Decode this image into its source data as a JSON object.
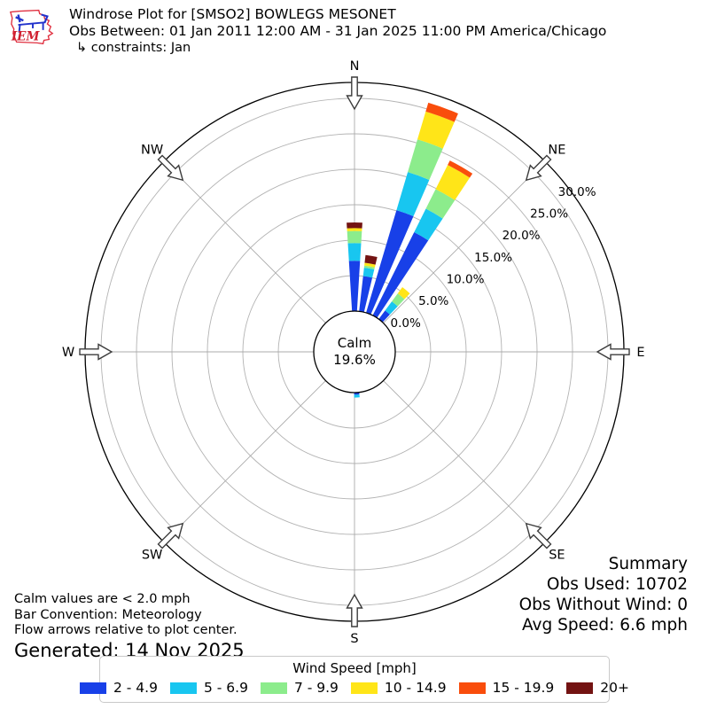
{
  "header": {
    "title": "Windrose Plot for [SMSO2] BOWLEGS MESONET",
    "obs_between": "Obs Between: 01 Jan 2011 12:00 AM - 31 Jan 2025 11:00 PM America/Chicago",
    "constraints": "↳ constraints: Jan"
  },
  "logo": {
    "text": "IEM"
  },
  "chart_data": {
    "type": "windrose",
    "title": "Windrose Plot for [SMSO2] BOWLEGS MESONET",
    "units": "mph",
    "calm": {
      "label": "Calm",
      "value": "19.6%"
    },
    "ring_ticks_pct": [
      0,
      5,
      10,
      15,
      20,
      25,
      30
    ],
    "ring_tick_labels": [
      "0.0%",
      "5.0%",
      "10.0%",
      "15.0%",
      "20.0%",
      "25.0%",
      "30.0%"
    ],
    "ring_label_angle_deg": 52,
    "rmax_pct": 32.2,
    "grid": true,
    "compass_points": [
      "N",
      "NE",
      "E",
      "SE",
      "S",
      "SW",
      "W",
      "NW"
    ],
    "speed_bins": [
      {
        "label": "2 - 4.9",
        "color": "#1840e8"
      },
      {
        "label": "5 - 6.9",
        "color": "#18c6f0"
      },
      {
        "label": "7 - 9.9",
        "color": "#8cec8c"
      },
      {
        "label": "10 - 14.9",
        "color": "#ffe518"
      },
      {
        "label": "15 - 19.9",
        "color": "#f94d0c"
      },
      {
        "label": "20+",
        "color": "#731312"
      }
    ],
    "bar_width_deg": 7,
    "bars": [
      {
        "dir_deg": 0,
        "cum_pct": [
          [
            0,
            7.1
          ],
          [
            1,
            9.6
          ],
          [
            2,
            11.3
          ],
          [
            3,
            11.7
          ],
          [
            5,
            12.5
          ]
        ]
      },
      {
        "dir_deg": 10,
        "cum_pct": [
          [
            0,
            5.0
          ],
          [
            1,
            6.2
          ],
          [
            2,
            6.5
          ],
          [
            3,
            6.9
          ],
          [
            5,
            8.0
          ]
        ]
      },
      {
        "dir_deg": 20,
        "cum_pct": [
          [
            0,
            15.1
          ],
          [
            1,
            20.7
          ],
          [
            2,
            25.5
          ],
          [
            3,
            29.6
          ],
          [
            4,
            30.9
          ]
        ]
      },
      {
        "dir_deg": 30,
        "cum_pct": [
          [
            0,
            13.1
          ],
          [
            1,
            16.8
          ],
          [
            2,
            19.9
          ],
          [
            3,
            23.7
          ],
          [
            4,
            24.4
          ]
        ]
      },
      {
        "dir_deg": 40,
        "cum_pct": [
          [
            0,
            1.5
          ],
          [
            1,
            3.1
          ],
          [
            2,
            4.5
          ],
          [
            3,
            5.6
          ]
        ]
      },
      {
        "dir_deg": 177,
        "cum_pct": [
          [
            0,
            0.3
          ],
          [
            1,
            0.7
          ]
        ]
      }
    ]
  },
  "summary": {
    "heading": "Summary",
    "obs_used": "Obs Used: 10702",
    "obs_without_wind": "Obs Without Wind: 0",
    "avg_speed": "Avg Speed: 6.6 mph"
  },
  "footnotes": {
    "line1": "Calm values are < 2.0 mph",
    "line2": "Bar Convention: Meteorology",
    "line3": "Flow arrows relative to plot center.",
    "generated": "Generated: 14 Nov 2025"
  },
  "legend": {
    "title": "Wind Speed [mph]"
  }
}
